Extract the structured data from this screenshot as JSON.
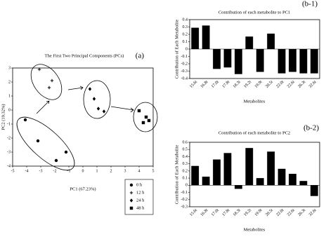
{
  "chart_data": [
    {
      "type": "scatter",
      "title": "The First Two Principal Components (PCs)",
      "panel": "(a)",
      "xlabel": "PC1 (67.23%)",
      "ylabel": "PC2 (19.32%)",
      "xlim": [
        -5,
        5
      ],
      "xticks": [
        -5,
        -4,
        -3,
        -2,
        -1,
        0,
        1,
        2,
        3,
        4,
        5
      ],
      "ylim": [
        -4,
        3
      ],
      "yticks": [
        -4,
        -3,
        -2,
        -1,
        0,
        1,
        2,
        3
      ],
      "series": [
        {
          "name": "0 h",
          "color": "#000000",
          "marker": "circle",
          "x": [
            -4.1,
            -3.2,
            -1.9,
            -1.2
          ],
          "y": [
            -0.7,
            -2.2,
            -3.6,
            -3.0
          ]
        },
        {
          "name": "12 h",
          "color": "#000000",
          "marker": "plus",
          "x": [
            -3.1,
            -2.4,
            -2.2
          ],
          "y": [
            2.9,
            1.6,
            2.1
          ]
        },
        {
          "name": "24 h",
          "color": "#000000",
          "marker": "diamond",
          "x": [
            0.5,
            0.8,
            1.1,
            1.5
          ],
          "y": [
            1.5,
            0.8,
            0.1,
            -0.1
          ]
        },
        {
          "name": "48 h",
          "color": "#000000",
          "marker": "square",
          "x": [
            4.0,
            4.3,
            4.5,
            4.7
          ],
          "y": [
            -0.05,
            -0.9,
            -0.5,
            -0.75
          ]
        }
      ]
    },
    {
      "type": "bar",
      "title": "Contribution of each metabolite to PC1",
      "panel": "(b-1)",
      "xlabel": "Metabolites",
      "ylabel": "Contribution of Each Metabolite",
      "color": "#000000",
      "categories": [
        "15.6t",
        "16.8t",
        "17.0t",
        "17.8t",
        "18.3t",
        "19.2t",
        "19.9t",
        "20.5t",
        "22.0t",
        "22.6t",
        "26.3t",
        "32.6t"
      ],
      "values": [
        0.29,
        0.32,
        -0.27,
        -0.25,
        -0.34,
        0.17,
        -0.31,
        0.21,
        -0.33,
        -0.31,
        -0.33,
        -0.33
      ],
      "ylim": [
        -0.4,
        0.4
      ],
      "yticks": [
        -0.4,
        -0.3,
        -0.2,
        -0.1,
        0,
        0.1,
        0.2,
        0.3,
        0.4
      ]
    },
    {
      "type": "bar",
      "title": "Contribution of each metabolite to PC2",
      "panel": "(b-2)",
      "xlabel": "Metabolites",
      "ylabel": "Contribution of Each Metabolite",
      "color": "#000000",
      "categories": [
        "15.6t",
        "16.8t",
        "17.0t",
        "17.8t",
        "18.3t",
        "19.2t",
        "19.9t",
        "20.5t",
        "22.0t",
        "22.6t",
        "26.3t",
        "32.6t"
      ],
      "values": [
        0.27,
        0.12,
        0.36,
        0.45,
        -0.05,
        0.52,
        0.1,
        0.47,
        0.23,
        0.16,
        0.06,
        -0.15
      ],
      "ylim": [
        -0.3,
        0.6
      ],
      "yticks": [
        -0.3,
        -0.2,
        -0.1,
        0,
        0.1,
        0.2,
        0.3,
        0.4,
        0.5,
        0.6
      ]
    }
  ]
}
